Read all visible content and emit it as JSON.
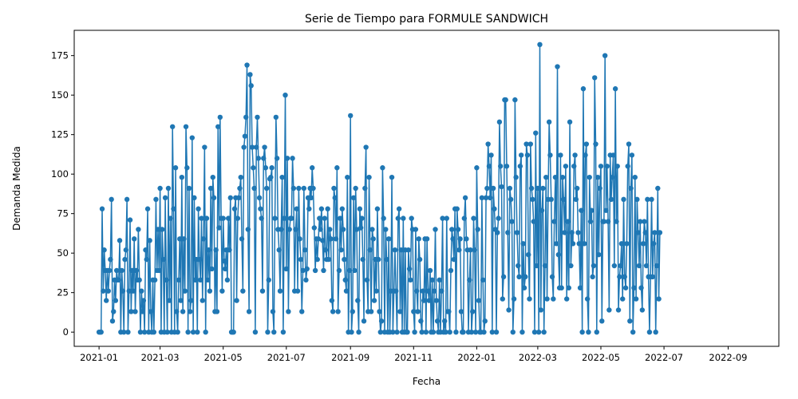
{
  "colors": {
    "series": "#1f77b4",
    "axis": "#000000",
    "background": "#ffffff"
  },
  "chart_data": {
    "type": "line",
    "marker": "circle",
    "title": "Serie de Tiempo para FORMULE SANDWICH",
    "xlabel": "Fecha",
    "ylabel": "Demanda Medida",
    "xlim": [
      "2020-12-08",
      "2022-10-20"
    ],
    "ylim": [
      -9,
      191
    ],
    "grid": false,
    "legend": "none",
    "x_ticks": [
      {
        "date": "2021-01-01",
        "label": "2021-01"
      },
      {
        "date": "2021-03-01",
        "label": "2021-03"
      },
      {
        "date": "2021-05-01",
        "label": "2021-05"
      },
      {
        "date": "2021-07-01",
        "label": "2021-07"
      },
      {
        "date": "2021-09-01",
        "label": "2021-09"
      },
      {
        "date": "2021-11-01",
        "label": "2021-11"
      },
      {
        "date": "2022-01-01",
        "label": "2022-01"
      },
      {
        "date": "2022-03-01",
        "label": "2022-03"
      },
      {
        "date": "2022-05-01",
        "label": "2022-05"
      },
      {
        "date": "2022-07-01",
        "label": "2022-07"
      },
      {
        "date": "2022-09-01",
        "label": "2022-09"
      }
    ],
    "y_ticks": [
      0,
      25,
      50,
      75,
      100,
      125,
      150,
      175
    ],
    "start_date": "2021-01-01",
    "series": [
      {
        "values": [
          0,
          0,
          0,
          78,
          26,
          52,
          39,
          20,
          39,
          26,
          39,
          46,
          84,
          7,
          13,
          33,
          20,
          39,
          33,
          33,
          58,
          0,
          39,
          26,
          0,
          46,
          52,
          84,
          0,
          26,
          71,
          13,
          39,
          26,
          59,
          13,
          39,
          33,
          65,
          33,
          0,
          26,
          13,
          20,
          0,
          52,
          46,
          78,
          0,
          58,
          13,
          0,
          33,
          0,
          33,
          84,
          39,
          65,
          39,
          91,
          0,
          65,
          46,
          0,
          85,
          33,
          0,
          91,
          20,
          72,
          0,
          130,
          78,
          0,
          104,
          13,
          0,
          33,
          59,
          20,
          98,
          13,
          59,
          26,
          130,
          104,
          0,
          91,
          13,
          20,
          123,
          0,
          85,
          33,
          46,
          0,
          78,
          46,
          33,
          72,
          20,
          59,
          117,
          0,
          72,
          33,
          52,
          26,
          91,
          40,
          98,
          85,
          13,
          52,
          13,
          130,
          66,
          136,
          72,
          26,
          72,
          45,
          40,
          52,
          33,
          72,
          52,
          85,
          0,
          0,
          0,
          78,
          85,
          20,
          72,
          85,
          91,
          98,
          59,
          26,
          117,
          124,
          136,
          169,
          65,
          13,
          163,
          156,
          117,
          104,
          91,
          0,
          117,
          136,
          110,
          85,
          78,
          72,
          26,
          110,
          117,
          104,
          91,
          0,
          33,
          97,
          98,
          104,
          13,
          0,
          72,
          136,
          110,
          65,
          52,
          26,
          65,
          98,
          0,
          72,
          150,
          40,
          110,
          13,
          65,
          72,
          72,
          110,
          91,
          26,
          65,
          78,
          26,
          91,
          59,
          46,
          13,
          39,
          91,
          52,
          33,
          40,
          85,
          78,
          91,
          85,
          104,
          91,
          66,
          39,
          59,
          46,
          59,
          72,
          65,
          78,
          58,
          39,
          72,
          52,
          46,
          78,
          46,
          65,
          59,
          20,
          13,
          91,
          85,
          59,
          104,
          13,
          39,
          72,
          52,
          78,
          65,
          46,
          33,
          26,
          98,
          0,
          39,
          137,
          0,
          13,
          85,
          39,
          91,
          65,
          20,
          0,
          78,
          66,
          72,
          46,
          7,
          91,
          117,
          33,
          13,
          98,
          52,
          13,
          65,
          59,
          20,
          46,
          26,
          78,
          46,
          13,
          0,
          7,
          104,
          72,
          0,
          65,
          46,
          0,
          59,
          0,
          26,
          98,
          0,
          26,
          52,
          26,
          0,
          72,
          78,
          13,
          52,
          0,
          72,
          0,
          52,
          0,
          0,
          52,
          40,
          33,
          72,
          65,
          13,
          0,
          65,
          26,
          13,
          59,
          46,
          7,
          0,
          26,
          20,
          59,
          0,
          59,
          26,
          20,
          39,
          0,
          33,
          0,
          26,
          65,
          20,
          7,
          0,
          33,
          0,
          26,
          72,
          0,
          7,
          0,
          72,
          13,
          13,
          0,
          39,
          65,
          59,
          46,
          78,
          0,
          78,
          65,
          52,
          59,
          13,
          0,
          0,
          72,
          85,
          59,
          52,
          0,
          33,
          52,
          0,
          13,
          72,
          52,
          0,
          104,
          65,
          20,
          0,
          0,
          85,
          33,
          0,
          7,
          85,
          91,
          119,
          105,
          85,
          112,
          0,
          91,
          78,
          65,
          0,
          63,
          72,
          133,
          105,
          92,
          21,
          35,
          147,
          147,
          105,
          63,
          14,
          91,
          84,
          70,
          0,
          21,
          147,
          98,
          63,
          42,
          35,
          105,
          112,
          0,
          56,
          28,
          35,
          119,
          112,
          49,
          21,
          119,
          91,
          84,
          70,
          0,
          126,
          42,
          91,
          0,
          182,
          14,
          77,
          91,
          0,
          42,
          98,
          21,
          84,
          133,
          112,
          84,
          35,
          21,
          70,
          98,
          56,
          168,
          49,
          28,
          112,
          28,
          98,
          84,
          63,
          105,
          21,
          70,
          28,
          133,
          42,
          63,
          56,
          105,
          112,
          84,
          91,
          63,
          56,
          28,
          77,
          0,
          154,
          56,
          112,
          119,
          21,
          0,
          98,
          70,
          77,
          35,
          42,
          161,
          119,
          0,
          98,
          49,
          91,
          105,
          7,
          70,
          70,
          175,
          77,
          105,
          70,
          14,
          112,
          84,
          98,
          112,
          42,
          154,
          70,
          105,
          14,
          35,
          42,
          56,
          21,
          84,
          35,
          28,
          56,
          105,
          119,
          7,
          91,
          112,
          0,
          28,
          98,
          21,
          84,
          63,
          42,
          70,
          28,
          14,
          56,
          70,
          63,
          42,
          84,
          35,
          0,
          35,
          84,
          35,
          56,
          63,
          0,
          42,
          91,
          21,
          63
        ]
      }
    ]
  }
}
